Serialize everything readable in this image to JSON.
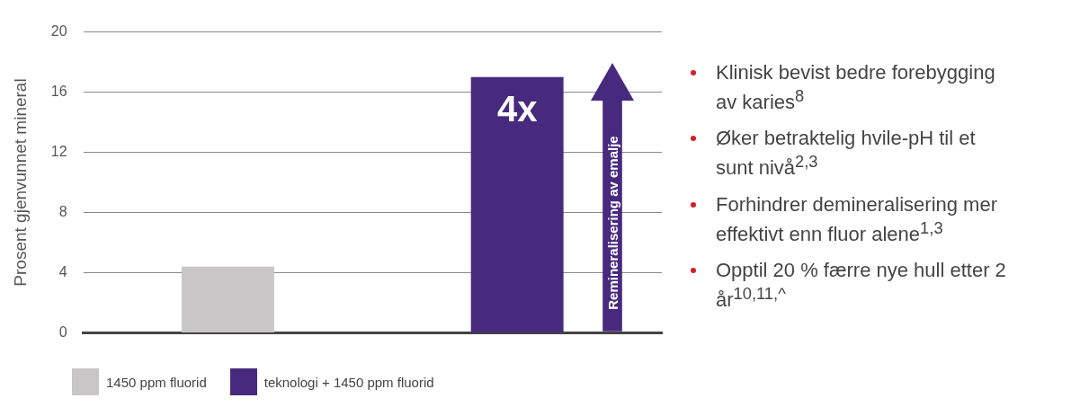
{
  "chart_data": {
    "type": "bar",
    "ylabel": "Prosent gjenvunnet mineral",
    "categories": [
      null,
      null
    ],
    "series": [
      {
        "name": "1450 ppm fluorid",
        "color": "#c8c6c6",
        "values": [
          4.4,
          null
        ]
      },
      {
        "name": "teknologi + 1450 ppm fluorid",
        "color": "#472a7e",
        "values": [
          null,
          17
        ]
      }
    ],
    "ylim": [
      0,
      20
    ],
    "yticks": [
      0,
      4,
      8,
      12,
      16,
      20
    ],
    "grid": "y",
    "legend": "bottom",
    "annotations": [
      "4x",
      "Remineralisering av emalje",
      "Klinisk bevist bedre forebygging av karies$^{8}$",
      "Øker betraktelig hvile-pH til et sunt nivå$^{2,3}$",
      "Forhindrer demineralisering mer effektivt enn fluor alene$^{1,3}$",
      "Opptil 20 % færre nye hull etter 2 år$^{10,11,^}$"
    ]
  }
}
